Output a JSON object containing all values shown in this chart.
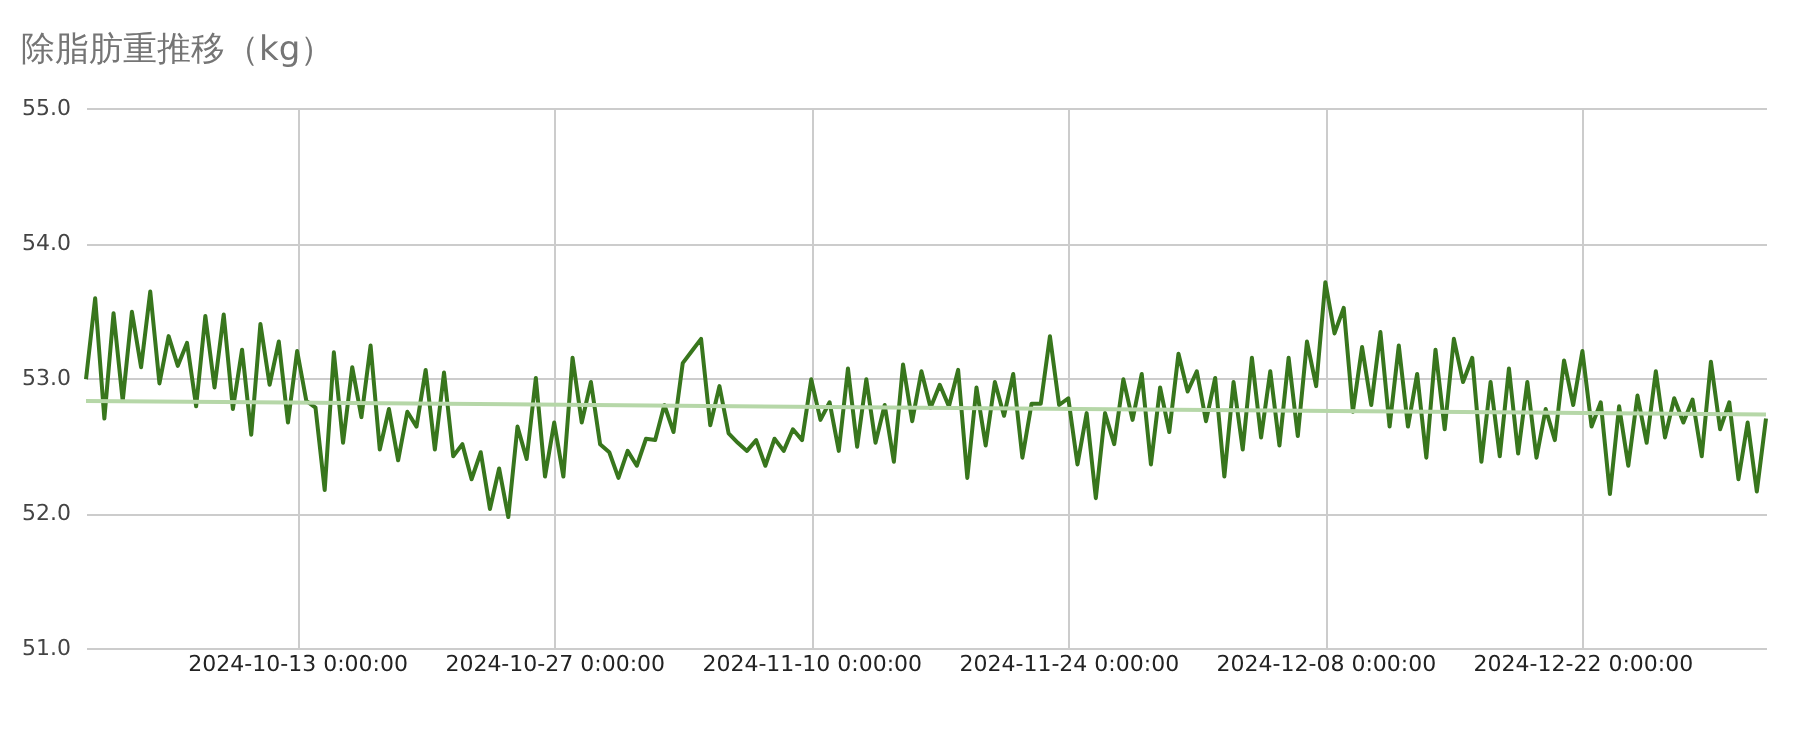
{
  "chart_data": {
    "type": "line",
    "title": "除脂肪重推移（kg）",
    "x": [
      "2024-10-01T12:00",
      "2024-10-02T00:00",
      "2024-10-02T12:00",
      "2024-10-03T00:00",
      "2024-10-03T12:00",
      "2024-10-04T00:00",
      "2024-10-04T12:00",
      "2024-10-05T00:00",
      "2024-10-05T12:00",
      "2024-10-06T00:00",
      "2024-10-06T12:00",
      "2024-10-07T00:00",
      "2024-10-07T12:00",
      "2024-10-08T00:00",
      "2024-10-08T12:00",
      "2024-10-09T00:00",
      "2024-10-09T12:00",
      "2024-10-10T00:00",
      "2024-10-10T12:00",
      "2024-10-11T00:00",
      "2024-10-11T12:00",
      "2024-10-12T00:00",
      "2024-10-12T12:00",
      "2024-10-13T00:00",
      "2024-10-13T12:00",
      "2024-10-14T00:00",
      "2024-10-14T12:00",
      "2024-10-15T00:00",
      "2024-10-15T12:00",
      "2024-10-16T00:00",
      "2024-10-16T12:00",
      "2024-10-17T00:00",
      "2024-10-17T12:00",
      "2024-10-18T00:00",
      "2024-10-18T12:00",
      "2024-10-19T00:00",
      "2024-10-19T12:00",
      "2024-10-20T00:00",
      "2024-10-20T12:00",
      "2024-10-21T00:00",
      "2024-10-21T12:00",
      "2024-10-22T00:00",
      "2024-10-22T12:00",
      "2024-10-23T00:00",
      "2024-10-23T12:00",
      "2024-10-24T00:00",
      "2024-10-24T12:00",
      "2024-10-25T00:00",
      "2024-10-25T12:00",
      "2024-10-26T00:00",
      "2024-10-26T12:00",
      "2024-10-27T00:00",
      "2024-10-27T12:00",
      "2024-10-28T00:00",
      "2024-10-28T12:00",
      "2024-10-29T00:00",
      "2024-10-29T12:00",
      "2024-10-30T00:00",
      "2024-10-30T12:00",
      "2024-10-31T00:00",
      "2024-10-31T12:00",
      "2024-11-01T00:00",
      "2024-11-01T12:00",
      "2024-11-02T00:00",
      "2024-11-02T12:00",
      "2024-11-03T00:00",
      "2024-11-03T12:00",
      "2024-11-04T00:00",
      "2024-11-04T12:00",
      "2024-11-05T00:00",
      "2024-11-05T12:00",
      "2024-11-06T00:00",
      "2024-11-06T12:00",
      "2024-11-07T00:00",
      "2024-11-07T12:00",
      "2024-11-08T00:00",
      "2024-11-08T12:00",
      "2024-11-09T00:00",
      "2024-11-09T12:00",
      "2024-11-10T00:00",
      "2024-11-10T12:00",
      "2024-11-11T00:00",
      "2024-11-11T12:00",
      "2024-11-12T00:00",
      "2024-11-12T12:00",
      "2024-11-13T00:00",
      "2024-11-13T12:00",
      "2024-11-14T00:00",
      "2024-11-14T12:00",
      "2024-11-15T00:00",
      "2024-11-15T12:00",
      "2024-11-16T00:00",
      "2024-11-16T12:00",
      "2024-11-17T00:00",
      "2024-11-17T12:00",
      "2024-11-18T00:00",
      "2024-11-18T12:00",
      "2024-11-19T00:00",
      "2024-11-19T12:00",
      "2024-11-20T00:00",
      "2024-11-20T12:00",
      "2024-11-21T00:00",
      "2024-11-21T12:00",
      "2024-11-22T00:00",
      "2024-11-22T12:00",
      "2024-11-23T00:00",
      "2024-11-23T12:00",
      "2024-11-24T00:00",
      "2024-11-24T12:00",
      "2024-11-25T00:00",
      "2024-11-25T12:00",
      "2024-11-26T00:00",
      "2024-11-26T12:00",
      "2024-11-27T00:00",
      "2024-11-27T12:00",
      "2024-11-28T00:00",
      "2024-11-28T12:00",
      "2024-11-29T00:00",
      "2024-11-29T12:00",
      "2024-11-30T00:00",
      "2024-11-30T12:00",
      "2024-12-01T00:00",
      "2024-12-01T12:00",
      "2024-12-02T00:00",
      "2024-12-02T12:00",
      "2024-12-03T00:00",
      "2024-12-03T12:00",
      "2024-12-04T00:00",
      "2024-12-04T12:00",
      "2024-12-05T00:00",
      "2024-12-05T12:00",
      "2024-12-06T00:00",
      "2024-12-06T12:00",
      "2024-12-07T00:00",
      "2024-12-07T12:00",
      "2024-12-08T00:00",
      "2024-12-08T12:00",
      "2024-12-09T00:00",
      "2024-12-09T12:00",
      "2024-12-10T00:00",
      "2024-12-10T12:00",
      "2024-12-11T00:00",
      "2024-12-11T12:00",
      "2024-12-12T00:00",
      "2024-12-12T12:00",
      "2024-12-13T00:00",
      "2024-12-13T12:00",
      "2024-12-14T00:00",
      "2024-12-14T12:00",
      "2024-12-15T00:00",
      "2024-12-15T12:00",
      "2024-12-16T00:00",
      "2024-12-16T12:00",
      "2024-12-17T00:00",
      "2024-12-17T12:00",
      "2024-12-18T00:00",
      "2024-12-18T12:00",
      "2024-12-19T00:00",
      "2024-12-19T12:00",
      "2024-12-20T00:00",
      "2024-12-20T12:00",
      "2024-12-21T00:00",
      "2024-12-21T12:00",
      "2024-12-22T00:00",
      "2024-12-22T12:00",
      "2024-12-23T00:00",
      "2024-12-23T12:00",
      "2024-12-24T00:00",
      "2024-12-24T12:00",
      "2024-12-25T00:00",
      "2024-12-25T12:00",
      "2024-12-26T00:00",
      "2024-12-26T12:00",
      "2024-12-27T00:00",
      "2024-12-27T12:00",
      "2024-12-28T00:00",
      "2024-12-28T12:00",
      "2024-12-29T00:00",
      "2024-12-29T12:00",
      "2024-12-30T00:00",
      "2024-12-30T12:00",
      "2024-12-31T00:00",
      "2024-12-31T12:00",
      "2025-01-01T00:00"
    ],
    "series": [
      {
        "color": "#38761d",
        "values": [
          52.99,
          53.59,
          52.7,
          53.48,
          52.83,
          53.49,
          53.08,
          53.64,
          52.96,
          53.31,
          53.09,
          53.26,
          52.79,
          53.46,
          52.93,
          53.47,
          52.77,
          53.21,
          52.58,
          53.4,
          52.95,
          53.27,
          52.67,
          53.2,
          52.83,
          52.78,
          52.17,
          53.19,
          52.52,
          53.08,
          52.71,
          53.24,
          52.47,
          52.77,
          52.39,
          52.75,
          52.64,
          53.06,
          52.47,
          53.04,
          52.42,
          52.51,
          52.25,
          52.45,
          52.03,
          52.33,
          51.97,
          52.64,
          52.4,
          53.0,
          52.27,
          52.67,
          52.27,
          53.15,
          52.67,
          52.97,
          52.51,
          52.45,
          52.26,
          52.46,
          52.35,
          52.55,
          52.54,
          52.8,
          52.6,
          53.11,
          53.2,
          53.29,
          52.65,
          52.94,
          52.59,
          52.52,
          52.46,
          52.54,
          52.35,
          52.55,
          52.46,
          52.62,
          52.54,
          52.99,
          52.69,
          52.82,
          52.46,
          53.07,
          52.49,
          52.99,
          52.52,
          52.8,
          52.38,
          53.1,
          52.68,
          53.05,
          52.78,
          52.95,
          52.79,
          53.06,
          52.26,
          52.93,
          52.5,
          52.97,
          52.72,
          53.03,
          52.41,
          52.81,
          52.81,
          53.31,
          52.8,
          52.85,
          52.36,
          52.74,
          52.11,
          52.74,
          52.51,
          52.99,
          52.69,
          53.03,
          52.36,
          52.93,
          52.6,
          53.18,
          52.9,
          53.05,
          52.68,
          53.0,
          52.27,
          52.97,
          52.47,
          53.15,
          52.56,
          53.05,
          52.5,
          53.15,
          52.57,
          53.27,
          52.94,
          53.71,
          53.33,
          53.52,
          52.75,
          53.23,
          52.8,
          53.34,
          52.64,
          53.24,
          52.64,
          53.03,
          52.41,
          53.21,
          52.62,
          53.29,
          52.97,
          53.15,
          52.38,
          52.97,
          52.42,
          53.07,
          52.44,
          52.97,
          52.41,
          52.77,
          52.54,
          53.13,
          52.8,
          53.2,
          52.64,
          52.82,
          52.14,
          52.79,
          52.35,
          52.87,
          52.52,
          53.05,
          52.56,
          52.85,
          52.67,
          52.84,
          52.42,
          53.12,
          52.62,
          52.82,
          52.25,
          52.67,
          52.16,
          52.7
        ]
      },
      {
        "type": "line",
        "color": "#b6d7a8",
        "x": [
          "2024-10-01T12:00",
          "2025-01-01T00:00"
        ],
        "values": [
          52.83,
          52.73
        ]
      }
    ],
    "xlim": [
      "2024-10-01T12:00",
      "2025-01-01T00:00"
    ],
    "xticks": [
      {
        "value": "2024-10-13T00:00",
        "label": "2024-10-13 0:00:00"
      },
      {
        "value": "2024-10-27T00:00",
        "label": "2024-10-27 0:00:00"
      },
      {
        "value": "2024-11-10T00:00",
        "label": "2024-11-10 0:00:00"
      },
      {
        "value": "2024-11-24T00:00",
        "label": "2024-11-24 0:00:00"
      },
      {
        "value": "2024-12-08T00:00",
        "label": "2024-12-08 0:00:00"
      },
      {
        "value": "2024-12-22T00:00",
        "label": "2024-12-22 0:00:00"
      }
    ],
    "ylim": [
      51,
      55
    ],
    "yticks": [
      {
        "value": 51,
        "label": "51.0"
      },
      {
        "value": 52,
        "label": "52.0"
      },
      {
        "value": 53,
        "label": "53.0"
      },
      {
        "value": 54,
        "label": "54.0"
      },
      {
        "value": 55,
        "label": "55.0"
      }
    ],
    "grid": true,
    "marker": "none",
    "line_style": "solid"
  }
}
